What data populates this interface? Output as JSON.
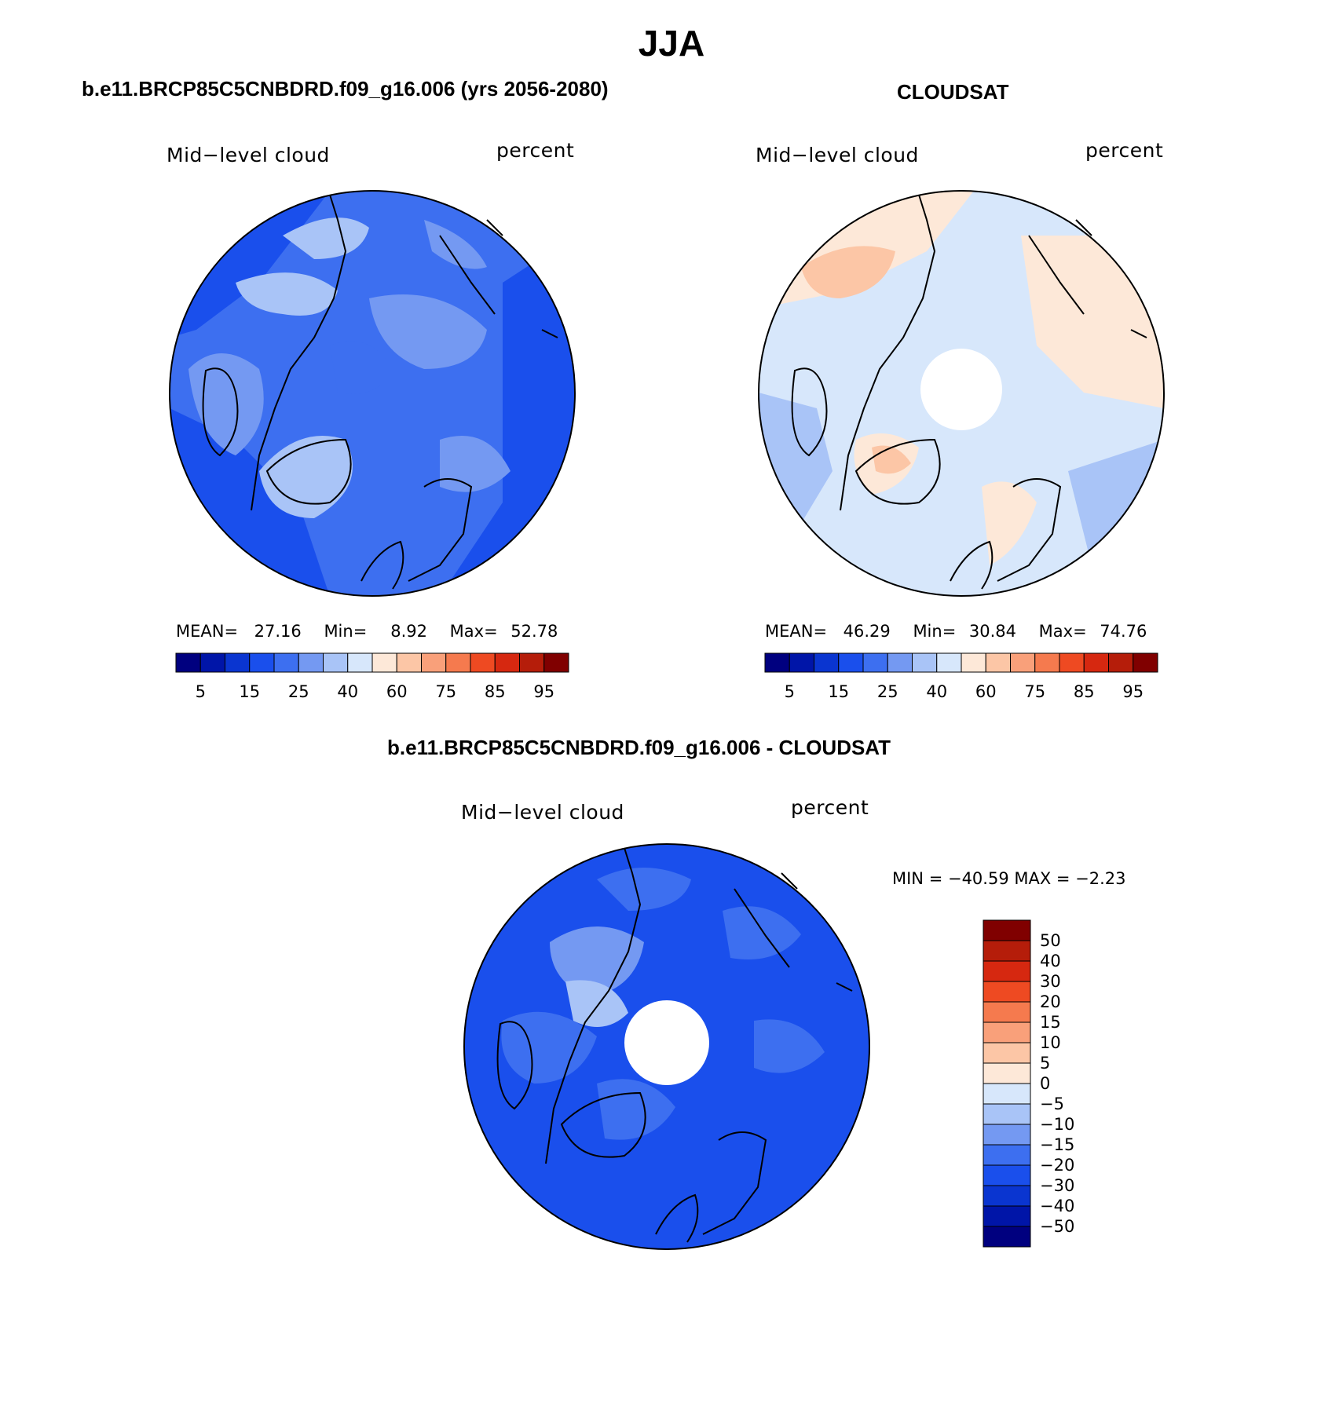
{
  "figure": {
    "title": "JJA"
  },
  "panels": [
    {
      "case_title": "b.e11.BRCP85C5CNBDRD.f09_g16.006 (yrs 2056-2080)",
      "variable": "Mid−level cloud",
      "units": "percent",
      "stats": {
        "mean_label": "MEAN=",
        "mean": "27.16",
        "min_label": "Min=",
        "min": "8.92",
        "max_label": "Max=",
        "max": "52.78"
      },
      "fill_scheme": "model",
      "colorbar_ticks": [
        "5",
        "15",
        "25",
        "40",
        "60",
        "75",
        "85",
        "95"
      ]
    },
    {
      "case_title": "CLOUDSAT",
      "variable": "Mid−level cloud",
      "units": "percent",
      "stats": {
        "mean_label": "MEAN=",
        "mean": "46.29",
        "min_label": "Min=",
        "min": "30.84",
        "max_label": "Max=",
        "max": "74.76"
      },
      "fill_scheme": "obs",
      "colorbar_ticks": [
        "5",
        "15",
        "25",
        "40",
        "60",
        "75",
        "85",
        "95"
      ]
    },
    {
      "case_title": "b.e11.BRCP85C5CNBDRD.f09_g16.006 - CLOUDSAT",
      "variable": "Mid−level cloud",
      "units": "percent",
      "stats_line": "MIN = −40.59  MAX =  −2.23",
      "fill_scheme": "diff",
      "colorbar_ticks": [
        "50",
        "40",
        "30",
        "20",
        "15",
        "10",
        "5",
        "0",
        "−5",
        "−10",
        "−15",
        "−20",
        "−30",
        "−40",
        "−50"
      ]
    }
  ],
  "colorbars": {
    "abs_colors": [
      "#00007f",
      "#0015a8",
      "#0a35d0",
      "#1a4fec",
      "#3d6ff0",
      "#7499f2",
      "#a9c4f7",
      "#d7e7fb",
      "#fde8d8",
      "#fcc6a6",
      "#f9a07a",
      "#f57a4e",
      "#ee4a22",
      "#d62810",
      "#b51d0a",
      "#800000"
    ],
    "diff_colors": [
      "#00007f",
      "#0015a8",
      "#0a35d0",
      "#1a4fec",
      "#3d6ff0",
      "#7499f2",
      "#a9c4f7",
      "#d7e7fb",
      "#fde8d8",
      "#fcc6a6",
      "#f9a07a",
      "#f57a4e",
      "#ee4a22",
      "#d62810",
      "#b51d0a",
      "#800000"
    ]
  },
  "chart_data": [
    {
      "type": "heatmap",
      "title": "b.e11.BRCP85C5CNBDRD.f09_g16.006 (yrs 2056-2080)",
      "subtitle": "Mid-level cloud",
      "units": "percent",
      "projection": "north polar stereographic",
      "season": "JJA",
      "mean": 27.16,
      "min": 8.92,
      "max": 52.78,
      "contour_levels": [
        5,
        10,
        15,
        20,
        25,
        30,
        40,
        50,
        60,
        70,
        75,
        80,
        85,
        90,
        95
      ]
    },
    {
      "type": "heatmap",
      "title": "CLOUDSAT",
      "subtitle": "Mid-level cloud",
      "units": "percent",
      "projection": "north polar stereographic",
      "season": "JJA",
      "mean": 46.29,
      "min": 30.84,
      "max": 74.76,
      "contour_levels": [
        5,
        10,
        15,
        20,
        25,
        30,
        40,
        50,
        60,
        70,
        75,
        80,
        85,
        90,
        95
      ]
    },
    {
      "type": "heatmap",
      "title": "b.e11.BRCP85C5CNBDRD.f09_g16.006 - CLOUDSAT",
      "subtitle": "Mid-level cloud",
      "units": "percent",
      "projection": "north polar stereographic",
      "season": "JJA",
      "min": -40.59,
      "max": -2.23,
      "contour_levels": [
        -50,
        -40,
        -30,
        -20,
        -15,
        -10,
        -5,
        0,
        5,
        10,
        15,
        20,
        30,
        40,
        50
      ]
    }
  ]
}
